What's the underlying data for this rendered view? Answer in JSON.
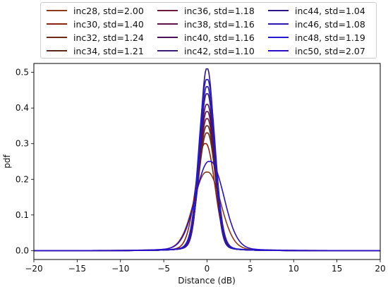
{
  "chart_data": {
    "type": "line",
    "xlabel": "Distance (dB)",
    "ylabel": "pdf",
    "xlim": [
      -20,
      20
    ],
    "ylim": [
      -0.025,
      0.525
    ],
    "xticks": [
      "−20",
      "−15",
      "−10",
      "−5",
      "0",
      "5",
      "10",
      "15",
      "20"
    ],
    "xtick_values": [
      -20,
      -15,
      -10,
      -5,
      0,
      5,
      10,
      15,
      20
    ],
    "yticks": [
      "0.0",
      "0.1",
      "0.2",
      "0.3",
      "0.4",
      "0.5"
    ],
    "ytick_values": [
      0.0,
      0.1,
      0.2,
      0.3,
      0.4,
      0.5
    ],
    "grid": false,
    "legend_position": "top",
    "series": [
      {
        "name": "inc28, std=2.00",
        "color": "#8b3a1a",
        "mean": 0.0,
        "std": 2.0,
        "peak": 0.22
      },
      {
        "name": "inc30, std=1.40",
        "color": "#8a2410",
        "mean": -0.2,
        "std": 1.4,
        "peak": 0.3
      },
      {
        "name": "inc32, std=1.24",
        "color": "#6e2a14",
        "mean": 0.0,
        "std": 1.24,
        "peak": 0.33
      },
      {
        "name": "inc34, std=1.21",
        "color": "#5a2a18",
        "mean": 0.0,
        "std": 1.21,
        "peak": 0.35
      },
      {
        "name": "inc36, std=1.18",
        "color": "#6a1a3a",
        "mean": 0.0,
        "std": 1.18,
        "peak": 0.37
      },
      {
        "name": "inc38, std=1.16",
        "color": "#5c1448",
        "mean": 0.0,
        "std": 1.16,
        "peak": 0.39
      },
      {
        "name": "inc40, std=1.16",
        "color": "#4a1060",
        "mean": 0.0,
        "std": 1.16,
        "peak": 0.41
      },
      {
        "name": "inc42, std=1.10",
        "color": "#3c1a7a",
        "mean": 0.0,
        "std": 1.1,
        "peak": 0.44
      },
      {
        "name": "inc44, std=1.04",
        "color": "#2c1486",
        "mean": 0.0,
        "std": 1.04,
        "peak": 0.51
      },
      {
        "name": "inc46, std=1.08",
        "color": "#2a1ab0",
        "mean": 0.0,
        "std": 1.08,
        "peak": 0.46
      },
      {
        "name": "inc48, std=1.19",
        "color": "#2418d0",
        "mean": 0.0,
        "std": 1.19,
        "peak": 0.48
      },
      {
        "name": "inc50, std=2.07",
        "color": "#2a10c8",
        "mean": 0.3,
        "std": 2.07,
        "peak": 0.25
      }
    ]
  }
}
